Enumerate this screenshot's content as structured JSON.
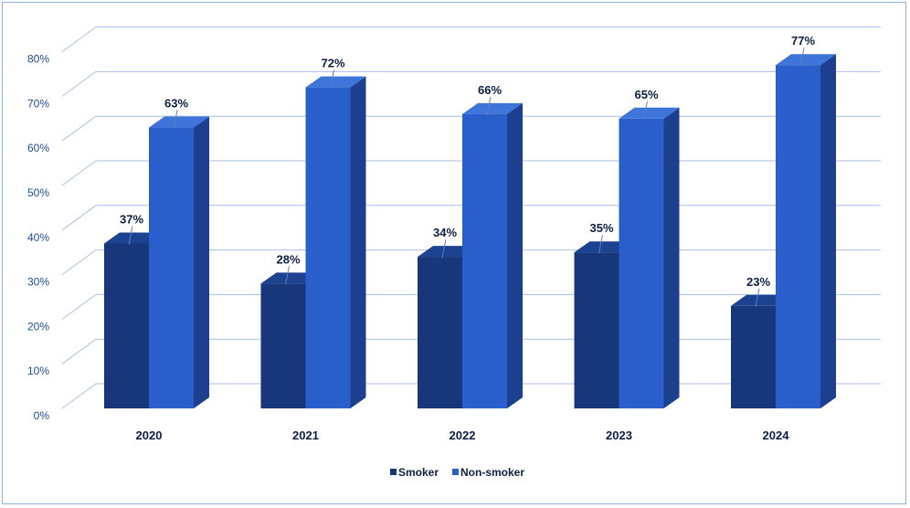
{
  "chart_data": {
    "type": "bar",
    "style": "3d-clustered-column",
    "categories": [
      "2020",
      "2021",
      "2022",
      "2023",
      "2024"
    ],
    "series": [
      {
        "name": "Smoker",
        "values": [
          37,
          28,
          34,
          35,
          23
        ],
        "color": "#17377a",
        "side_color": "#102a5e",
        "top_color": "#1d428f"
      },
      {
        "name": "Non-smoker",
        "values": [
          63,
          72,
          66,
          65,
          77
        ],
        "color": "#2a5fcb",
        "side_color": "#1c3f90",
        "top_color": "#3f74d9"
      }
    ],
    "data_labels": {
      "Smoker": [
        "37%",
        "28%",
        "34%",
        "35%",
        "23%"
      ],
      "Non-smoker": [
        "63%",
        "72%",
        "66%",
        "65%",
        "77%"
      ]
    },
    "y_ticks": [
      "0%",
      "10%",
      "20%",
      "30%",
      "40%",
      "50%",
      "60%",
      "70%",
      "80%"
    ],
    "ylim": [
      0,
      80
    ],
    "grid": true,
    "legend_position": "bottom",
    "colors": {
      "gridline": "#a9c1e6",
      "axis_text": "#1f4e99",
      "label_text": "#0d1f44",
      "frame_border": "#8fb0d8"
    },
    "title": "",
    "xlabel": "",
    "ylabel": ""
  }
}
